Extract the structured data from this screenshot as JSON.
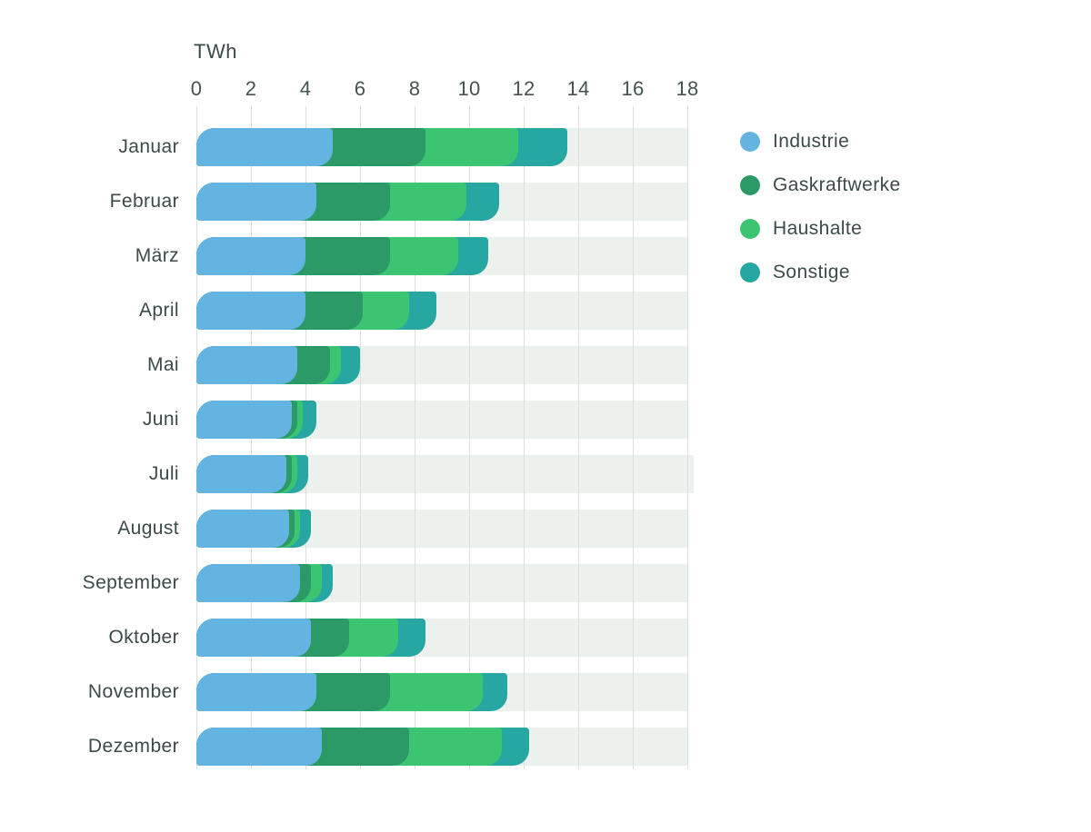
{
  "header": {
    "unit_label": "TWh"
  },
  "axis": {
    "tick_labels": [
      "0",
      "2",
      "4",
      "6",
      "8",
      "10",
      "12",
      "14",
      "16",
      "18"
    ]
  },
  "legend": {
    "items": [
      {
        "label": "Industrie",
        "color": "#64b4e1"
      },
      {
        "label": "Gaskraftwerke",
        "color": "#2b9a66"
      },
      {
        "label": "Haushalte",
        "color": "#3bc472"
      },
      {
        "label": "Sonstige",
        "color": "#26a7a2"
      }
    ]
  },
  "chart_data": {
    "type": "bar",
    "orientation": "horizontal",
    "stacked": true,
    "title": "",
    "unit": "TWh",
    "xlabel": "TWh",
    "ylabel": "",
    "xlim": [
      0,
      18
    ],
    "xticks": [
      0,
      2,
      4,
      6,
      8,
      10,
      12,
      14,
      16,
      18
    ],
    "grid": true,
    "legend_position": "right",
    "row_background_color": "#ecf1ed",
    "gridline_color": "#d6e1da",
    "categories": [
      "Januar",
      "Februar",
      "März",
      "April",
      "Mai",
      "Juni",
      "Juli",
      "August",
      "September",
      "Oktober",
      "November",
      "Dezember"
    ],
    "series": [
      {
        "name": "Industrie",
        "color": "#64b4e1",
        "values": [
          5.0,
          4.4,
          4.0,
          4.0,
          3.7,
          3.5,
          3.3,
          3.4,
          3.8,
          4.2,
          4.4,
          4.6
        ]
      },
      {
        "name": "Gaskraftwerke",
        "color": "#2b9a66",
        "values": [
          3.4,
          2.7,
          3.1,
          2.1,
          1.2,
          0.2,
          0.2,
          0.2,
          0.4,
          1.4,
          2.7,
          3.2
        ]
      },
      {
        "name": "Haushalte",
        "color": "#3bc472",
        "values": [
          3.4,
          2.8,
          2.5,
          1.7,
          0.4,
          0.2,
          0.2,
          0.2,
          0.4,
          1.8,
          3.4,
          3.4
        ]
      },
      {
        "name": "Sonstige",
        "color": "#26a7a2",
        "values": [
          1.8,
          1.2,
          1.1,
          1.0,
          0.7,
          0.5,
          0.4,
          0.4,
          0.4,
          1.0,
          0.9,
          1.0
        ]
      }
    ],
    "totals": [
      13.6,
      11.1,
      10.7,
      8.8,
      6.0,
      4.4,
      4.1,
      4.2,
      5.0,
      8.4,
      11.4,
      12.2
    ]
  },
  "colors": {
    "background": "#ffffff",
    "text": "#3d4a4a",
    "tick_text": "#45534f",
    "gridline": "#d6e1da",
    "row_stripe": "#ecf1ed"
  }
}
